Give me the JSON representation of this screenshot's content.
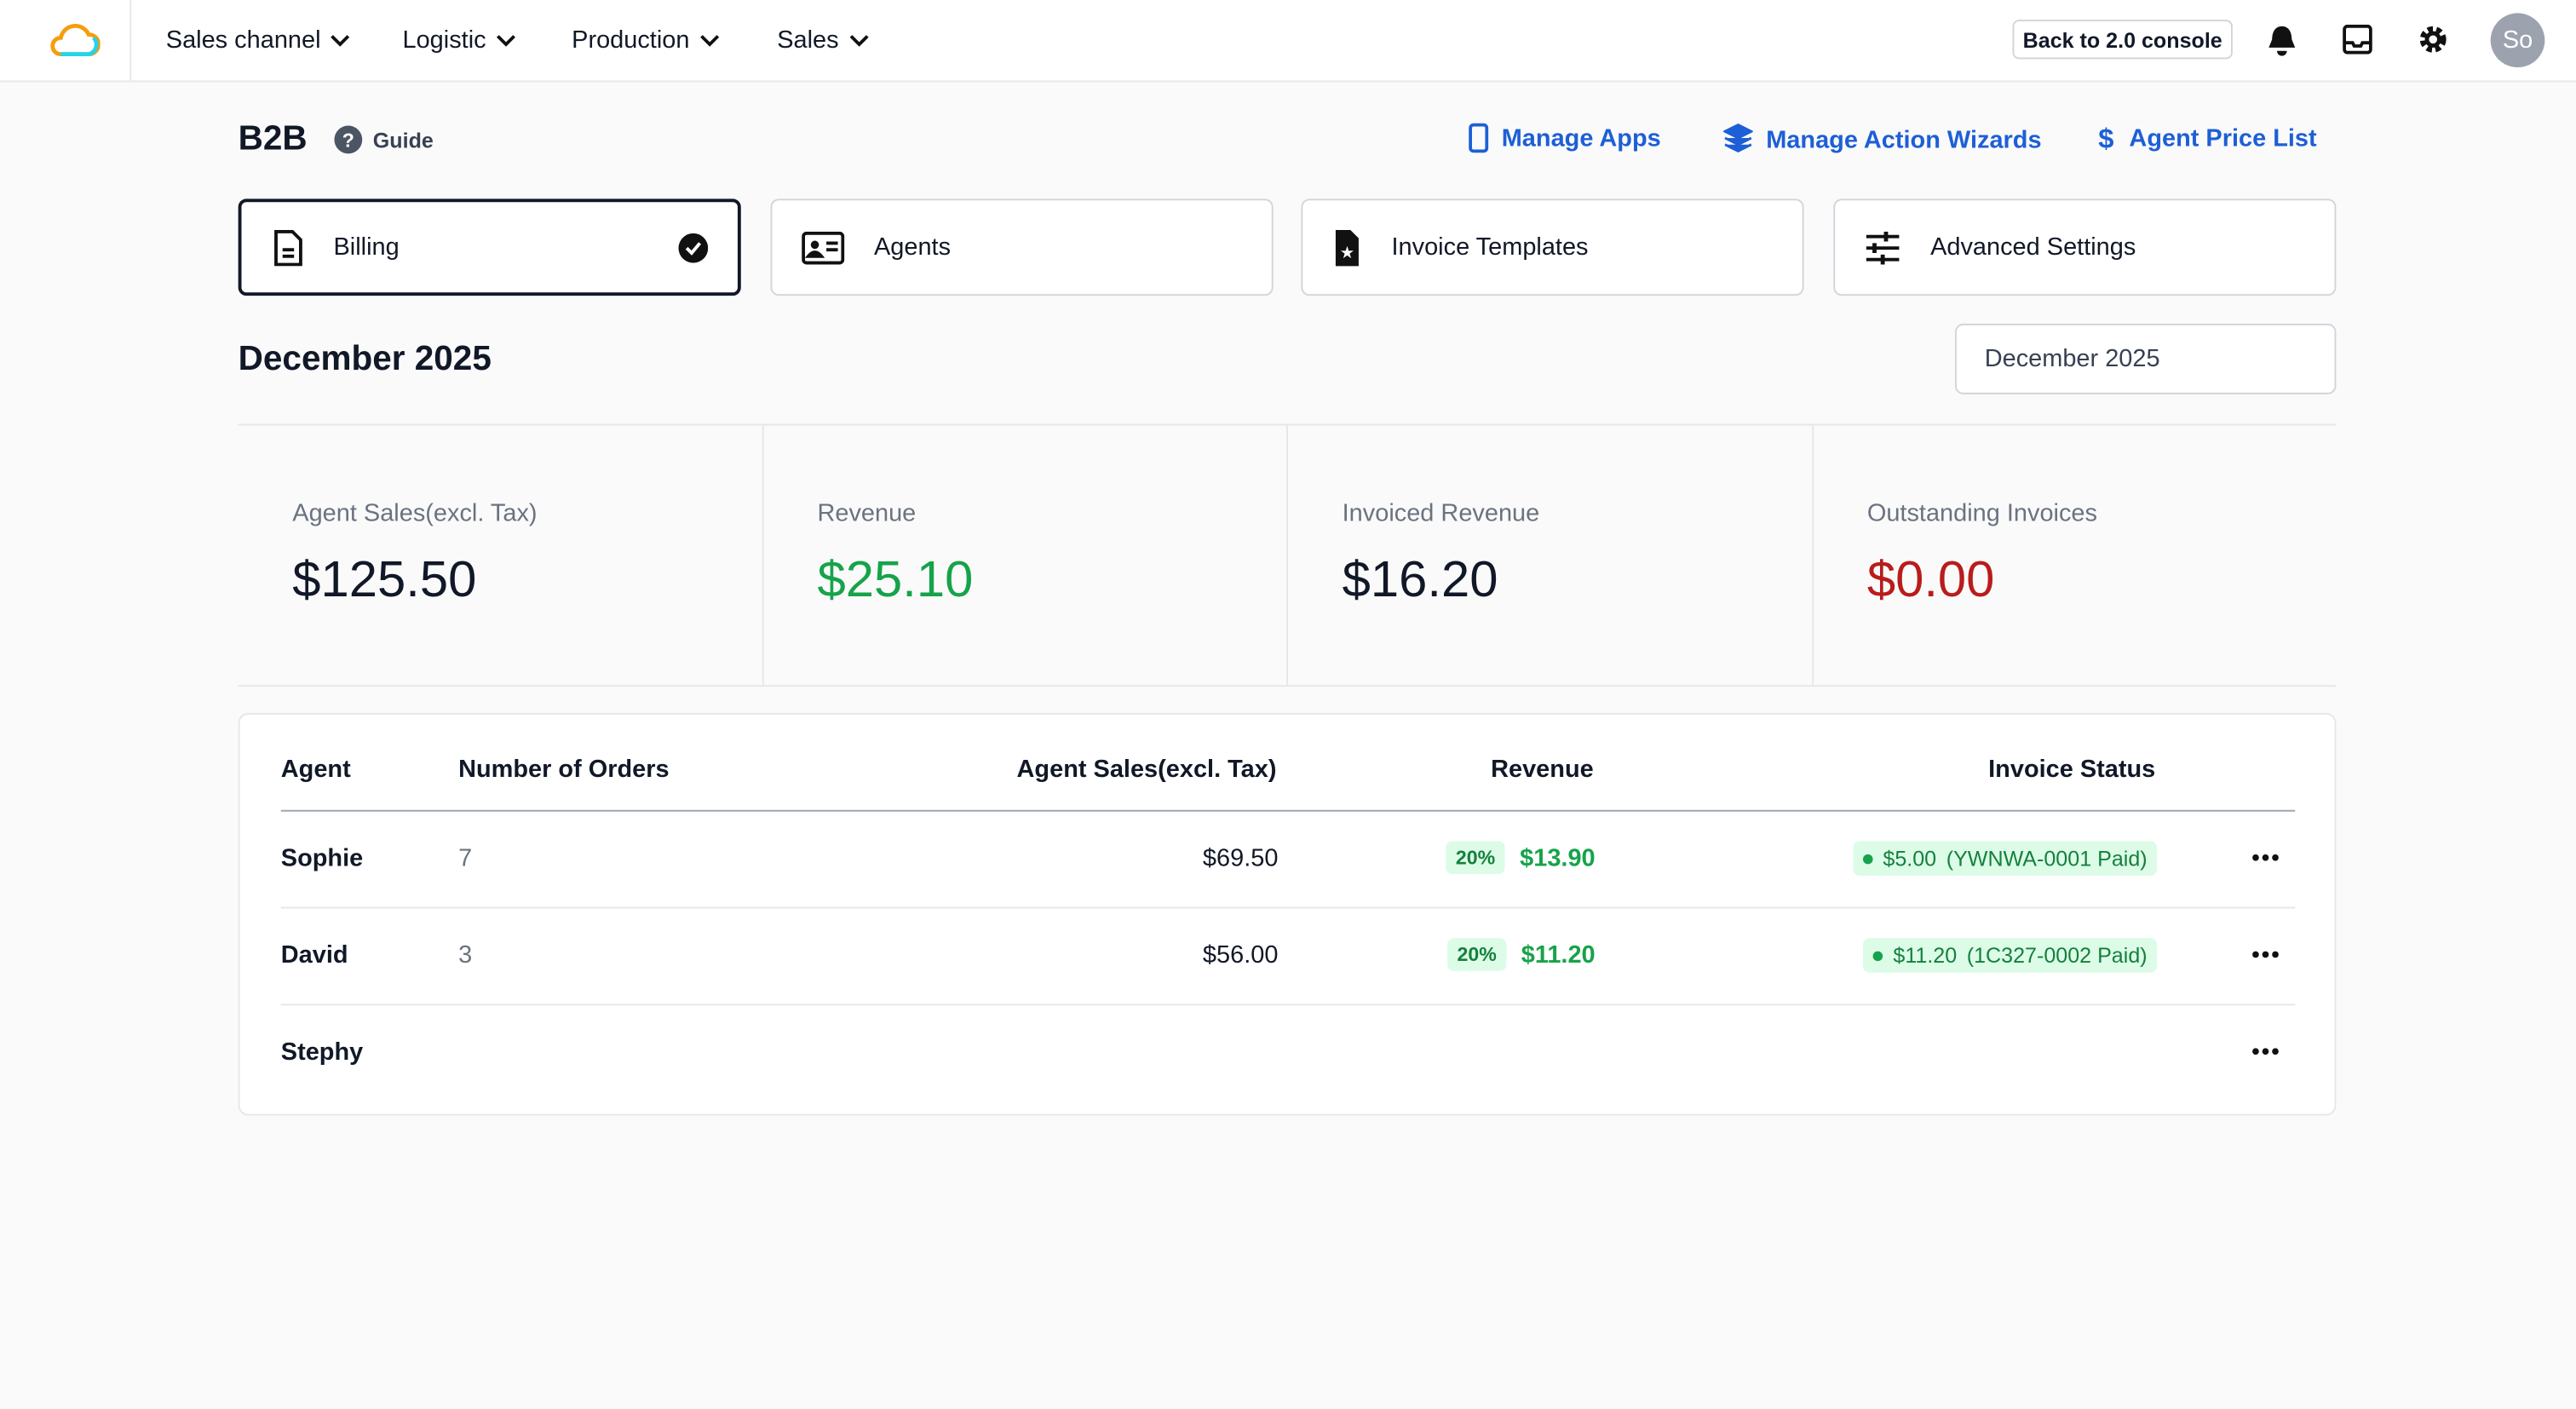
{
  "nav": {
    "items": [
      "Sales channel",
      "Logistic",
      "Production",
      "Sales"
    ],
    "console_button": "Back to 2.0 console",
    "avatar": "So"
  },
  "header": {
    "title": "B2B",
    "guide": "Guide",
    "links": [
      "Manage Apps",
      "Manage Action Wizards",
      "Agent Price List"
    ]
  },
  "tabs": [
    "Billing",
    "Agents",
    "Invoice Templates",
    "Advanced Settings"
  ],
  "period": {
    "title": "December 2025",
    "picker": "December 2025"
  },
  "stats": [
    {
      "label": "Agent Sales(excl. Tax)",
      "value": "$125.50"
    },
    {
      "label": "Revenue",
      "value": "$25.10"
    },
    {
      "label": "Invoiced Revenue",
      "value": "$16.20"
    },
    {
      "label": "Outstanding Invoices",
      "value": "$0.00"
    }
  ],
  "table": {
    "columns": [
      "Agent",
      "Number of Orders",
      "Agent Sales(excl. Tax)",
      "Revenue",
      "Invoice Status"
    ],
    "rows": [
      {
        "agent": "Sophie",
        "orders": "7",
        "sales": "$69.50",
        "rate": "20%",
        "revenue": "$13.90",
        "invoice_amount": "$5.00",
        "invoice_ref": "(YWNWA-0001 Paid)"
      },
      {
        "agent": "David",
        "orders": "3",
        "sales": "$56.00",
        "rate": "20%",
        "revenue": "$11.20",
        "invoice_amount": "$11.20",
        "invoice_ref": "(1C327-0002 Paid)"
      },
      {
        "agent": "Stephy"
      }
    ]
  }
}
